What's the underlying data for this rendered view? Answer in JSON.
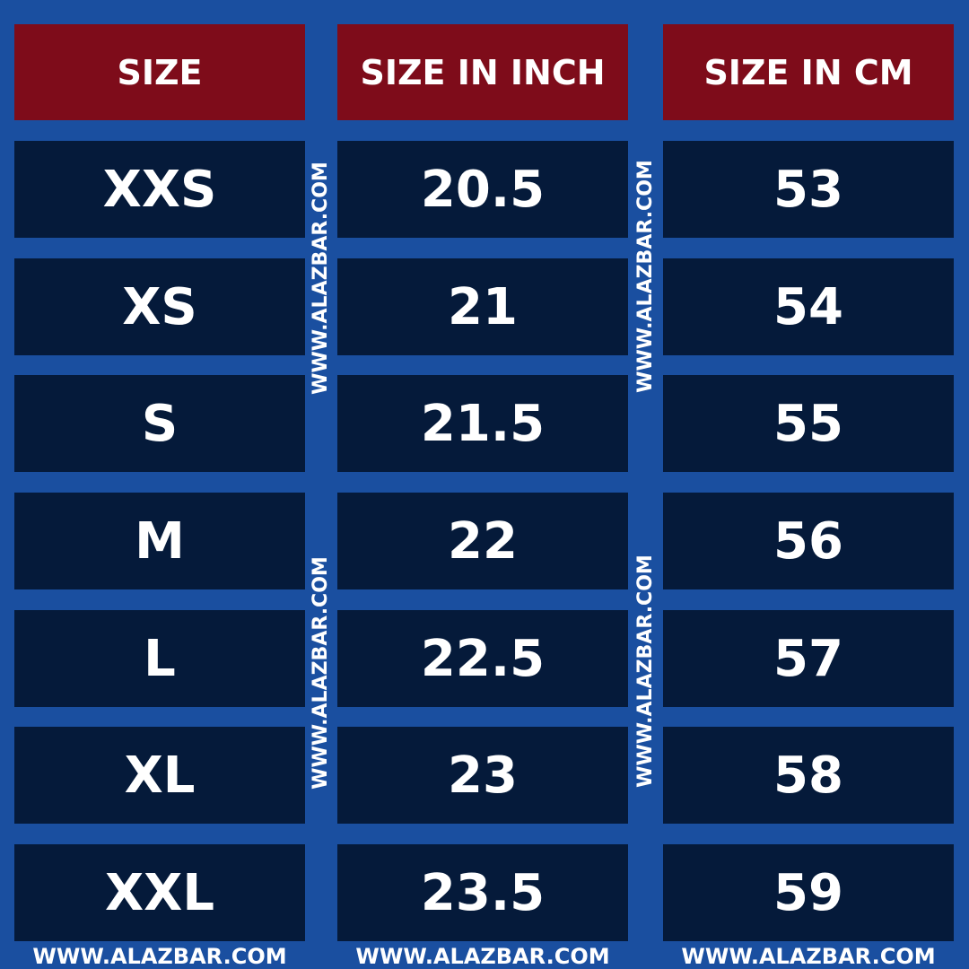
{
  "table": {
    "header": [
      "SIZE",
      "SIZE IN INCH",
      "SIZE IN CM"
    ],
    "rows": [
      [
        "XXS",
        "20.5",
        "53"
      ],
      [
        "XS",
        "21",
        "54"
      ],
      [
        "S",
        "21.5",
        "55"
      ],
      [
        "M",
        "22",
        "56"
      ],
      [
        "L",
        "22.5",
        "57"
      ],
      [
        "XL",
        "23",
        "58"
      ],
      [
        "XXL",
        "23.5",
        "59"
      ]
    ]
  },
  "watermarks": {
    "vertical": [
      "WWW.ALAZBAR.COM",
      "WWW.ALAZBAR.COM",
      "WWW.ALAZBAR.COM",
      "WWW.ALAZBAR.COM"
    ],
    "bottom": [
      "WWW.ALAZBAR.COM",
      "WWW.ALAZBAR.COM",
      "WWW.ALAZBAR.COM"
    ]
  }
}
